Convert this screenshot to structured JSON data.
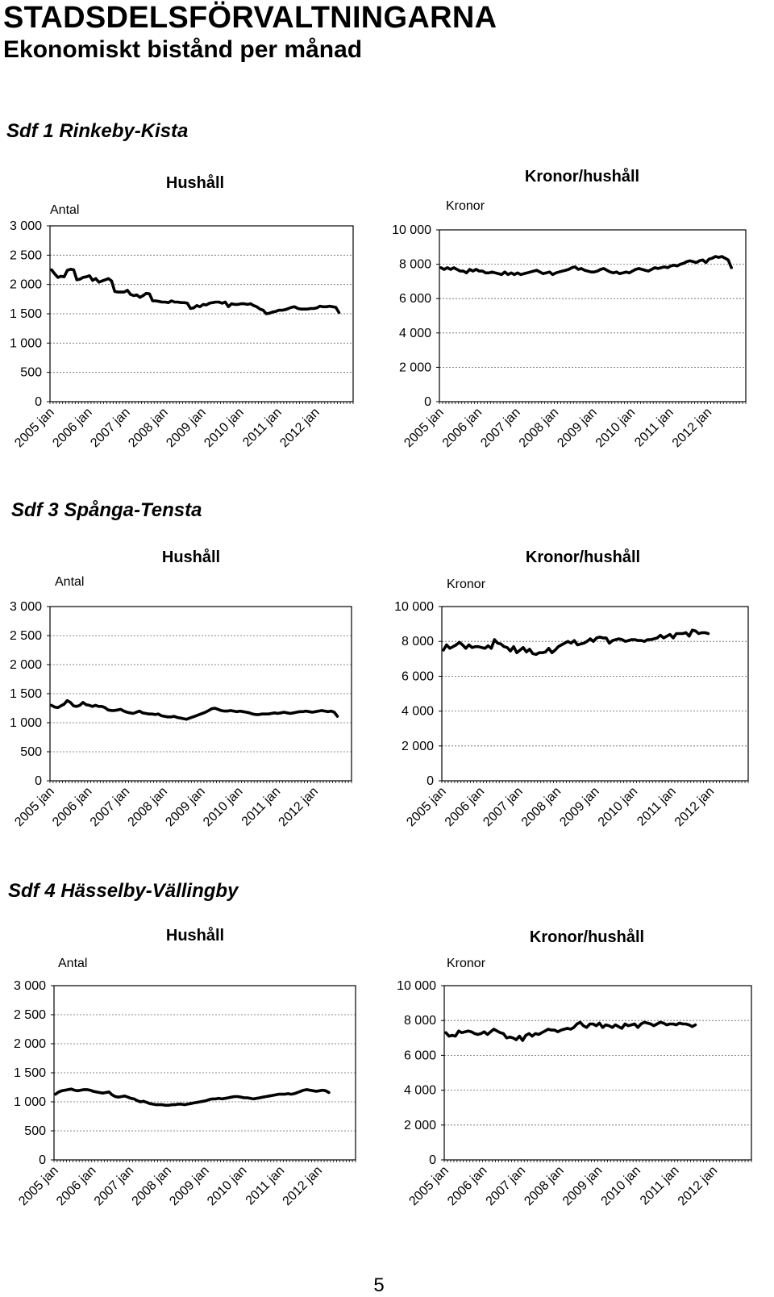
{
  "page": {
    "title": "STADSDELSFÖRVALTNINGARNA",
    "subtitle": "Ekonomiskt bistånd per månad",
    "page_number": "5"
  },
  "sections": [
    {
      "title": "Sdf 1 Rinkeby-Kista"
    },
    {
      "title": "Sdf 3 Spånga-Tensta"
    },
    {
      "title": "Sdf 4 Hässelby-Vällingby"
    }
  ],
  "chart_data": [
    {
      "id": "sdf1-hushall",
      "type": "line",
      "title": "Hushåll",
      "ylabel": "Antal",
      "ylim": [
        0,
        3000
      ],
      "yticks": [
        0,
        500,
        1000,
        1500,
        2000,
        2500,
        3000
      ],
      "ytick_labels": [
        "0",
        "500",
        "1 000",
        "1 500",
        "2 000",
        "2 500",
        "3 000"
      ],
      "x_start": "2005-01",
      "x_tick_labels": [
        "2005 jan",
        "2006 jan",
        "2007 jan",
        "2008 jan",
        "2009 jan",
        "2010 jan",
        "2011 jan",
        "2012 jan"
      ],
      "grid": true,
      "legend": "none",
      "series": [
        {
          "values": [
            2250,
            2180,
            2120,
            2140,
            2130,
            2240,
            2260,
            2250,
            2080,
            2090,
            2120,
            2130,
            2150,
            2070,
            2100,
            2040,
            2060,
            2080,
            2100,
            2060,
            1880,
            1870,
            1870,
            1870,
            1900,
            1830,
            1810,
            1820,
            1780,
            1810,
            1850,
            1840,
            1720,
            1720,
            1710,
            1700,
            1700,
            1690,
            1720,
            1700,
            1700,
            1690,
            1690,
            1680,
            1590,
            1600,
            1640,
            1620,
            1660,
            1650,
            1680,
            1690,
            1700,
            1700,
            1680,
            1700,
            1620,
            1670,
            1660,
            1660,
            1670,
            1670,
            1660,
            1670,
            1640,
            1620,
            1580,
            1560,
            1500,
            1510,
            1530,
            1540,
            1560,
            1560,
            1570,
            1590,
            1610,
            1620,
            1590,
            1580,
            1580,
            1580,
            1590,
            1590,
            1600,
            1630,
            1620,
            1620,
            1630,
            1620,
            1610,
            1520
          ]
        }
      ]
    },
    {
      "id": "sdf1-kronor",
      "type": "line",
      "title": "Kronor/hushåll",
      "ylabel": "Kronor",
      "ylim": [
        0,
        10000
      ],
      "yticks": [
        0,
        2000,
        4000,
        6000,
        8000,
        10000
      ],
      "ytick_labels": [
        "0",
        "2 000",
        "4 000",
        "6 000",
        "8 000",
        "10 000"
      ],
      "x_start": "2005-01",
      "x_tick_labels": [
        "2005 jan",
        "2006 jan",
        "2007 jan",
        "2008 jan",
        "2009 jan",
        "2010 jan",
        "2011 jan",
        "2012 jan"
      ],
      "grid": true,
      "legend": "none",
      "series": [
        {
          "values": [
            7800,
            7700,
            7800,
            7700,
            7800,
            7700,
            7600,
            7600,
            7500,
            7700,
            7600,
            7700,
            7600,
            7600,
            7500,
            7500,
            7550,
            7500,
            7450,
            7400,
            7550,
            7400,
            7500,
            7400,
            7500,
            7400,
            7450,
            7500,
            7550,
            7600,
            7650,
            7550,
            7450,
            7500,
            7550,
            7400,
            7500,
            7550,
            7600,
            7650,
            7700,
            7800,
            7850,
            7700,
            7750,
            7650,
            7600,
            7550,
            7550,
            7600,
            7700,
            7750,
            7650,
            7550,
            7500,
            7550,
            7450,
            7500,
            7550,
            7500,
            7600,
            7700,
            7750,
            7700,
            7650,
            7600,
            7700,
            7800,
            7750,
            7800,
            7850,
            7800,
            7900,
            7950,
            7900,
            8000,
            8050,
            8150,
            8200,
            8150,
            8100,
            8200,
            8250,
            8100,
            8300,
            8350,
            8450,
            8400,
            8450,
            8350,
            8250,
            7800
          ]
        }
      ]
    },
    {
      "id": "sdf3-hushall",
      "type": "line",
      "title": "Hushåll",
      "ylabel": "Antal",
      "ylim": [
        0,
        3000
      ],
      "yticks": [
        0,
        500,
        1000,
        1500,
        2000,
        2500,
        3000
      ],
      "ytick_labels": [
        "0",
        "500",
        "1 000",
        "1 500",
        "2 000",
        "2 500",
        "3 000"
      ],
      "x_start": "2005-01",
      "x_tick_labels": [
        "2005 jan",
        "2006 jan",
        "2007 jan",
        "2008 jan",
        "2009 jan",
        "2010 jan",
        "2011 jan",
        "2012 jan"
      ],
      "grid": true,
      "legend": "none",
      "series": [
        {
          "values": [
            1300,
            1270,
            1260,
            1290,
            1320,
            1380,
            1350,
            1290,
            1280,
            1300,
            1350,
            1310,
            1300,
            1280,
            1300,
            1280,
            1280,
            1260,
            1220,
            1210,
            1210,
            1220,
            1230,
            1200,
            1180,
            1170,
            1160,
            1180,
            1200,
            1170,
            1160,
            1150,
            1150,
            1140,
            1150,
            1120,
            1110,
            1100,
            1100,
            1110,
            1090,
            1080,
            1070,
            1060,
            1080,
            1100,
            1120,
            1140,
            1160,
            1180,
            1210,
            1240,
            1250,
            1230,
            1210,
            1200,
            1200,
            1210,
            1200,
            1190,
            1200,
            1190,
            1180,
            1170,
            1150,
            1140,
            1140,
            1150,
            1150,
            1150,
            1160,
            1170,
            1160,
            1170,
            1180,
            1170,
            1160,
            1170,
            1180,
            1190,
            1190,
            1200,
            1190,
            1180,
            1190,
            1200,
            1210,
            1200,
            1190,
            1200,
            1180,
            1110
          ]
        }
      ]
    },
    {
      "id": "sdf3-kronor",
      "type": "line",
      "title": "Kronor/hushåll",
      "ylabel": "Kronor",
      "ylim": [
        0,
        10000
      ],
      "yticks": [
        0,
        2000,
        4000,
        6000,
        8000,
        10000
      ],
      "ytick_labels": [
        "0",
        "2 000",
        "4 000",
        "6 000",
        "8 000",
        "10 000"
      ],
      "x_start": "2005-01",
      "x_tick_labels": [
        "2005 jan",
        "2006 jan",
        "2007 jan",
        "2008 jan",
        "2009 jan",
        "2010 jan",
        "2011 jan",
        "2012 jan"
      ],
      "grid": true,
      "legend": "none",
      "series": [
        {
          "values": [
            7500,
            7800,
            7600,
            7700,
            7800,
            7950,
            7800,
            7600,
            7800,
            7650,
            7700,
            7700,
            7650,
            7600,
            7750,
            7600,
            8100,
            7900,
            7850,
            7700,
            7650,
            7450,
            7700,
            7350,
            7500,
            7650,
            7400,
            7550,
            7300,
            7250,
            7350,
            7350,
            7400,
            7600,
            7350,
            7500,
            7700,
            7800,
            7900,
            8000,
            7900,
            8050,
            7800,
            7850,
            7900,
            8000,
            8150,
            8000,
            8200,
            8250,
            8200,
            8200,
            7900,
            8050,
            8100,
            8150,
            8100,
            8000,
            8050,
            8100,
            8100,
            8050,
            8050,
            8000,
            8100,
            8100,
            8150,
            8200,
            8350,
            8200,
            8300,
            8400,
            8200,
            8450,
            8450,
            8450,
            8500,
            8300,
            8650,
            8600,
            8450,
            8500,
            8500,
            8450
          ]
        }
      ]
    },
    {
      "id": "sdf4-hushall",
      "type": "line",
      "title": "Hushåll",
      "ylabel": "Antal",
      "ylim": [
        0,
        3000
      ],
      "yticks": [
        0,
        500,
        1000,
        1500,
        2000,
        2500,
        3000
      ],
      "ytick_labels": [
        "0",
        "500",
        "1 000",
        "1 500",
        "2 000",
        "2 500",
        "3 000"
      ],
      "x_start": "2005-01",
      "x_tick_labels": [
        "2005 jan",
        "2006 jan",
        "2007 jan",
        "2008 jan",
        "2009 jan",
        "2010 jan",
        "2011 jan",
        "2012 jan"
      ],
      "grid": true,
      "legend": "none",
      "series": [
        {
          "values": [
            1130,
            1170,
            1190,
            1200,
            1210,
            1220,
            1200,
            1190,
            1200,
            1210,
            1210,
            1200,
            1180,
            1170,
            1160,
            1150,
            1160,
            1170,
            1120,
            1090,
            1080,
            1090,
            1100,
            1080,
            1060,
            1050,
            1020,
            1000,
            1010,
            990,
            970,
            960,
            950,
            950,
            950,
            940,
            940,
            950,
            950,
            960,
            960,
            950,
            960,
            970,
            980,
            990,
            1000,
            1010,
            1020,
            1040,
            1050,
            1050,
            1060,
            1050,
            1060,
            1070,
            1080,
            1090,
            1090,
            1080,
            1070,
            1070,
            1060,
            1050,
            1060,
            1070,
            1080,
            1090,
            1100,
            1110,
            1120,
            1130,
            1130,
            1130,
            1140,
            1130,
            1140,
            1160,
            1180,
            1200,
            1210,
            1200,
            1190,
            1180,
            1190,
            1200,
            1190,
            1160
          ]
        }
      ]
    },
    {
      "id": "sdf4-kronor",
      "type": "line",
      "title": "Kronor/hushåll",
      "ylabel": "Kronor",
      "ylim": [
        0,
        10000
      ],
      "yticks": [
        0,
        2000,
        4000,
        6000,
        8000,
        10000
      ],
      "ytick_labels": [
        "0",
        "2 000",
        "4 000",
        "6 000",
        "8 000",
        "10 000"
      ],
      "x_start": "2005-01",
      "x_tick_labels": [
        "2005 jan",
        "2006 jan",
        "2007 jan",
        "2008 jan",
        "2009 jan",
        "2010 jan",
        "2011 jan",
        "2012 jan"
      ],
      "grid": true,
      "legend": "none",
      "series": [
        {
          "values": [
            7300,
            7100,
            7150,
            7100,
            7400,
            7300,
            7350,
            7400,
            7350,
            7250,
            7200,
            7250,
            7350,
            7200,
            7350,
            7500,
            7400,
            7300,
            7250,
            7000,
            7050,
            7000,
            6900,
            7100,
            6850,
            7150,
            7250,
            7100,
            7250,
            7200,
            7300,
            7400,
            7500,
            7450,
            7450,
            7350,
            7450,
            7500,
            7550,
            7500,
            7600,
            7800,
            7900,
            7700,
            7600,
            7800,
            7800,
            7700,
            7850,
            7600,
            7750,
            7700,
            7600,
            7750,
            7650,
            7550,
            7800,
            7700,
            7750,
            7800,
            7600,
            7800,
            7900,
            7850,
            7800,
            7700,
            7800,
            7900,
            7850,
            7750,
            7800,
            7800,
            7750,
            7850,
            7800,
            7800,
            7750,
            7650,
            7750
          ]
        }
      ]
    }
  ]
}
